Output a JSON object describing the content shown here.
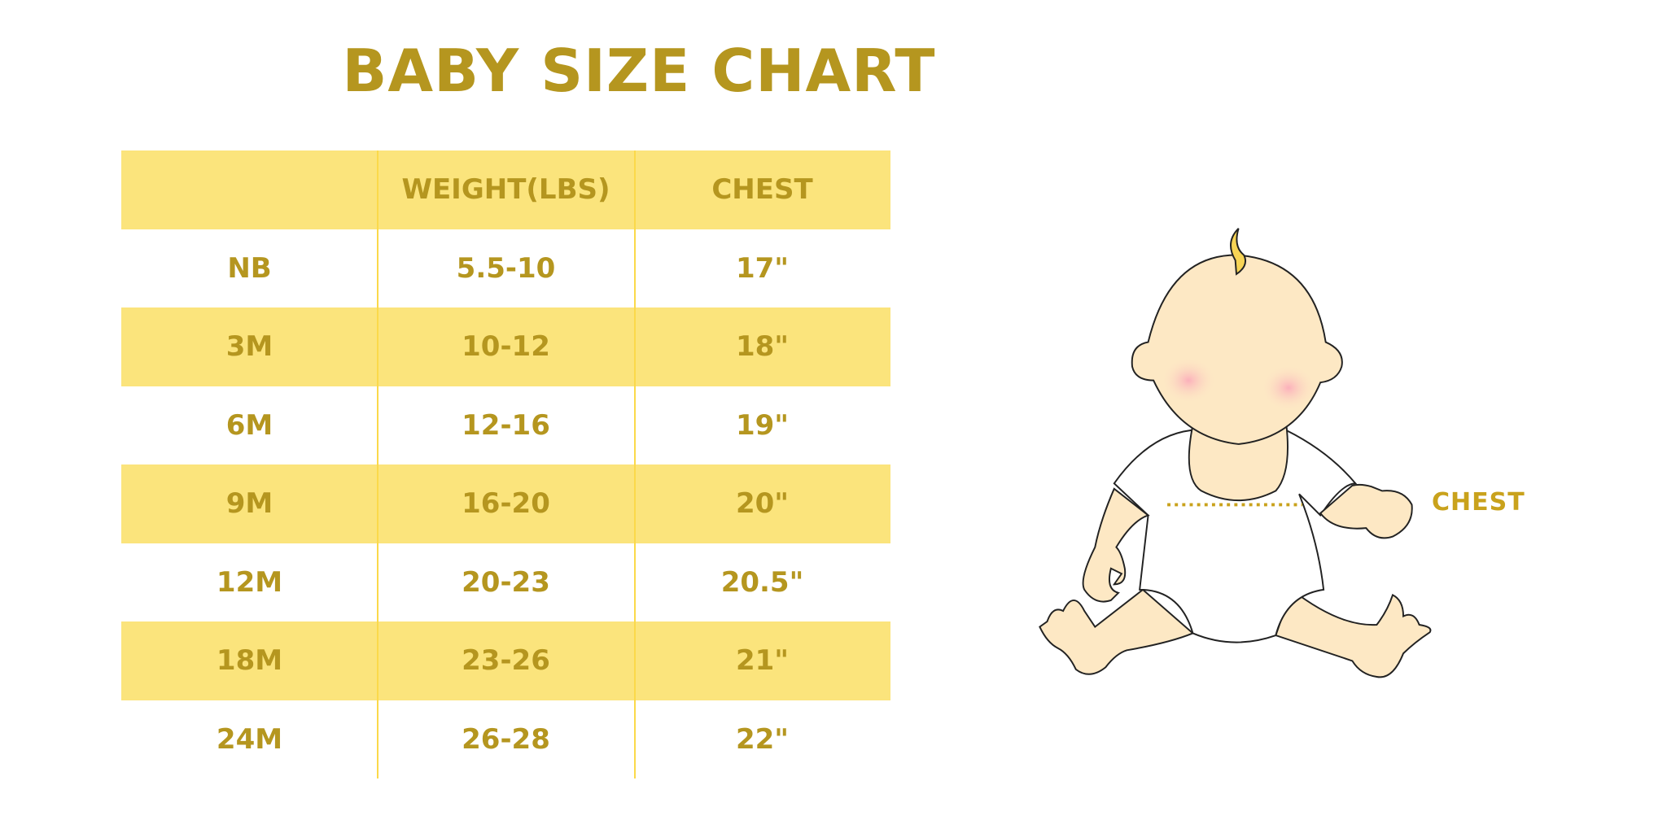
{
  "title": "BABY SIZE CHART",
  "table": {
    "headers": [
      "",
      "WEIGHT(LBS)",
      "CHEST"
    ],
    "rows": [
      [
        "NB",
        "5.5-10",
        "17\""
      ],
      [
        "3M",
        "10-12",
        "18\""
      ],
      [
        "6M",
        "12-16",
        "19\""
      ],
      [
        "9M",
        "16-20",
        "20\""
      ],
      [
        "12M",
        "20-23",
        "20.5\""
      ],
      [
        "18M",
        "23-26",
        "21\""
      ],
      [
        "24M",
        "26-28",
        "22\""
      ]
    ]
  },
  "illustration": {
    "label": "CHEST",
    "icon": "baby-illustration"
  },
  "colors": {
    "text": "#b5961f",
    "band": "#fbe47c",
    "skin": "#fde8c4",
    "blush": "#fbb8c0"
  }
}
